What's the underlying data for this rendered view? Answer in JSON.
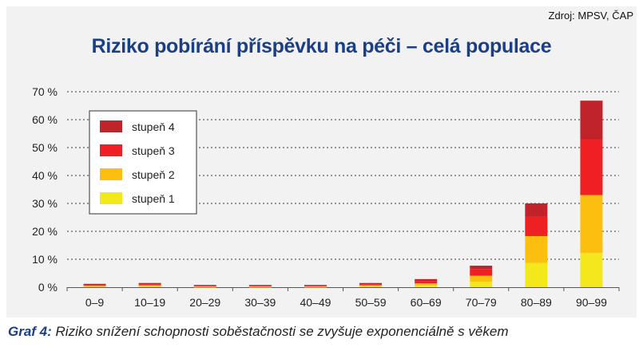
{
  "source": "Zdroj: MPSV, ČAP",
  "caption": {
    "label": "Graf 4:",
    "text": " Riziko snížení schopnosti soběstačnosti se zvyšuje exponenciálně s věkem"
  },
  "chart_data": {
    "type": "bar",
    "stacked": true,
    "title": "Riziko pobírání příspěvku na péči – celá populace",
    "categories": [
      "0–9",
      "10–19",
      "20–29",
      "30–39",
      "40–49",
      "50–59",
      "60–69",
      "70–79",
      "80–89",
      "90–99"
    ],
    "y_ticks": [
      "0 %",
      "10 %",
      "20 %",
      "30 %",
      "40 %",
      "50 %",
      "60 %",
      "70 %"
    ],
    "ylim": [
      0,
      70
    ],
    "grid": true,
    "legend_position": "top-left",
    "series": [
      {
        "name": "stupeň 1",
        "color": "#f2e81c",
        "values": [
          0.2,
          0.3,
          0.1,
          0.1,
          0.1,
          0.3,
          0.6,
          2.0,
          8.7,
          12.3
        ]
      },
      {
        "name": "stupeň 2",
        "color": "#fcbf10",
        "values": [
          0.3,
          0.4,
          0.2,
          0.2,
          0.2,
          0.4,
          0.8,
          2.1,
          9.6,
          20.7
        ]
      },
      {
        "name": "stupeň 3",
        "color": "#ee2024",
        "values": [
          0.3,
          0.4,
          0.2,
          0.2,
          0.2,
          0.4,
          0.8,
          2.4,
          7.0,
          20.0
        ]
      },
      {
        "name": "stupeň 4",
        "color": "#c1232b",
        "values": [
          0.4,
          0.4,
          0.3,
          0.3,
          0.3,
          0.4,
          0.7,
          1.2,
          4.7,
          13.8
        ]
      }
    ]
  }
}
